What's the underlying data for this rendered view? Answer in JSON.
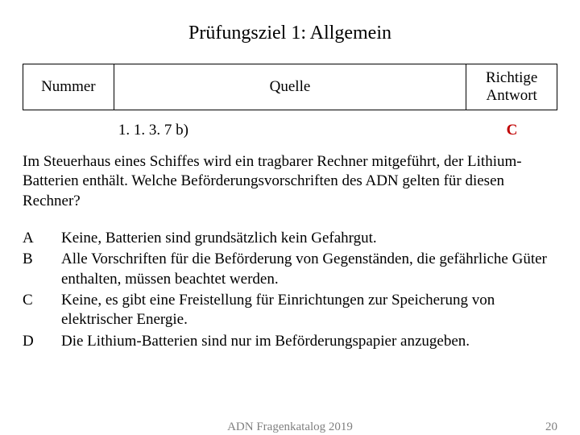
{
  "title": "Prüfungsziel 1: Allgemein",
  "header": {
    "nummer": "Nummer",
    "quelle": "Quelle",
    "antwort": "Richtige Antwort"
  },
  "ref": {
    "nummer": "",
    "quelle": "1. 1. 3. 7 b)",
    "antwort": "C"
  },
  "question": "Im Steuerhaus eines Schiffes wird ein tragbarer Rechner mitgeführt, der Lithium-Batterien enthält. Welche Beförderungsvorschriften des ADN gelten für diesen Rechner?",
  "answer_A": {
    "letter": "A",
    "text": "Keine, Batterien sind grundsätzlich kein Gefahrgut."
  },
  "answer_B": {
    "letter": "B",
    "text": "Alle Vorschriften für die Beförderung von Gegenständen, die gefährliche Güter enthalten, müssen beachtet werden."
  },
  "answer_C": {
    "letter": "C",
    "text": "Keine, es gibt eine Freistellung für Einrichtungen zur Speicherung von elektrischer Energie."
  },
  "answer_D": {
    "letter": "D",
    "text": "Die Lithium-Batterien sind nur im Beförderungspapier anzugeben."
  },
  "footer": {
    "text": "ADN Fragenkatalog 2019",
    "page": "20"
  },
  "colors": {
    "answer": "#c00000",
    "footer": "#7f7f7f",
    "text": "#000000",
    "bg": "#ffffff"
  }
}
